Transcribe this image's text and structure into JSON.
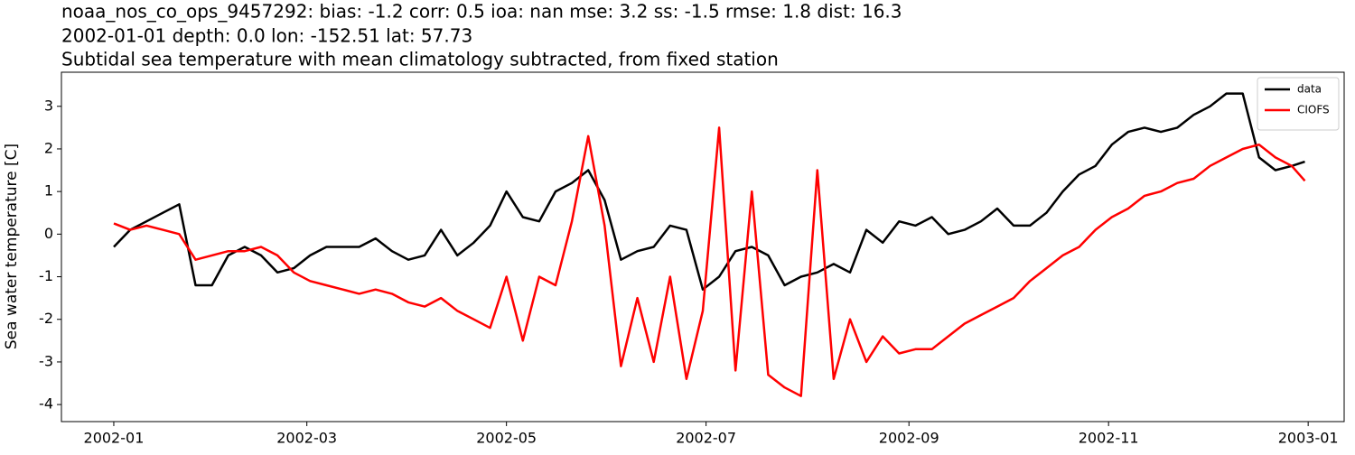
{
  "chart_data": {
    "type": "line",
    "title": [
      "noaa_nos_co_ops_9457292: bias: -1.2  corr: 0.5  ioa: nan  mse: 3.2  ss: -1.5  rmse: 1.8  dist: 16.3",
      "2002-01-01 depth: 0.0 lon: -152.51 lat: 57.73",
      "Subtidal sea temperature with mean climatology subtracted, from fixed station"
    ],
    "y_label": "Sea water temperature [C]",
    "x": [
      0,
      5,
      10,
      15,
      20,
      25,
      30,
      35,
      40,
      45,
      50,
      55,
      60,
      65,
      70,
      75,
      80,
      85,
      90,
      95,
      100,
      105,
      110,
      115,
      120,
      125,
      130,
      135,
      140,
      145,
      150,
      155,
      160,
      165,
      170,
      175,
      180,
      185,
      190,
      195,
      200,
      205,
      210,
      215,
      220,
      225,
      230,
      235,
      240,
      245,
      250,
      255,
      260,
      265,
      270,
      275,
      280,
      285,
      290,
      295,
      300,
      305,
      310,
      315,
      320,
      325,
      330,
      335,
      340,
      345,
      350,
      355,
      360,
      364
    ],
    "xlim": [
      -16,
      376
    ],
    "xticks": [
      {
        "value": 0,
        "label": "2002-01"
      },
      {
        "value": 59,
        "label": "2002-03"
      },
      {
        "value": 120,
        "label": "2002-05"
      },
      {
        "value": 181,
        "label": "2002-07"
      },
      {
        "value": 243,
        "label": "2002-09"
      },
      {
        "value": 304,
        "label": "2002-11"
      },
      {
        "value": 365,
        "label": "2003-01"
      }
    ],
    "ylim": [
      -4.4,
      3.8
    ],
    "yticks": [
      -4,
      -3,
      -2,
      -1,
      0,
      1,
      2,
      3
    ],
    "legend": "upper right",
    "series": [
      {
        "name": "data",
        "color": "#000000",
        "values": [
          -0.3,
          0.1,
          0.3,
          0.5,
          0.7,
          -1.2,
          -1.2,
          -0.5,
          -0.3,
          -0.5,
          -0.9,
          -0.8,
          -0.5,
          -0.3,
          -0.3,
          -0.3,
          -0.1,
          -0.4,
          -0.6,
          -0.5,
          0.1,
          -0.5,
          -0.2,
          0.2,
          1.0,
          0.4,
          0.3,
          1.0,
          1.2,
          1.5,
          0.8,
          -0.6,
          -0.4,
          -0.3,
          0.2,
          0.1,
          -1.3,
          -1.0,
          -0.4,
          -0.3,
          -0.5,
          -1.2,
          -1.0,
          -0.9,
          -0.7,
          -0.9,
          0.1,
          -0.2,
          0.3,
          0.2,
          0.4,
          0.0,
          0.1,
          0.3,
          0.6,
          0.2,
          0.2,
          0.5,
          1.0,
          1.4,
          1.6,
          2.1,
          2.4,
          2.5,
          2.4,
          2.5,
          2.8,
          3.0,
          3.3,
          3.3,
          1.8,
          1.5,
          1.6,
          1.7
        ]
      },
      {
        "name": "CIOFS",
        "color": "#ff0000",
        "values": [
          0.25,
          0.1,
          0.2,
          0.1,
          0.0,
          -0.6,
          -0.5,
          -0.4,
          -0.4,
          -0.3,
          -0.5,
          -0.9,
          -1.1,
          -1.2,
          -1.3,
          -1.4,
          -1.3,
          -1.4,
          -1.6,
          -1.7,
          -1.5,
          -1.8,
          -2.0,
          -2.2,
          -1.0,
          -2.5,
          -1.0,
          -1.2,
          0.3,
          2.3,
          0.2,
          -3.1,
          -1.5,
          -3.0,
          -1.0,
          -3.4,
          -1.8,
          2.5,
          -3.2,
          1.0,
          -3.3,
          -3.6,
          -3.8,
          1.5,
          -3.4,
          -2.0,
          -3.0,
          -2.4,
          -2.8,
          -2.7,
          -2.7,
          -2.4,
          -2.1,
          -1.9,
          -1.7,
          -1.5,
          -1.1,
          -0.8,
          -0.5,
          -0.3,
          0.1,
          0.4,
          0.6,
          0.9,
          1.0,
          1.2,
          1.3,
          1.6,
          1.8,
          2.0,
          2.1,
          1.8,
          1.6,
          1.25
        ]
      }
    ]
  }
}
